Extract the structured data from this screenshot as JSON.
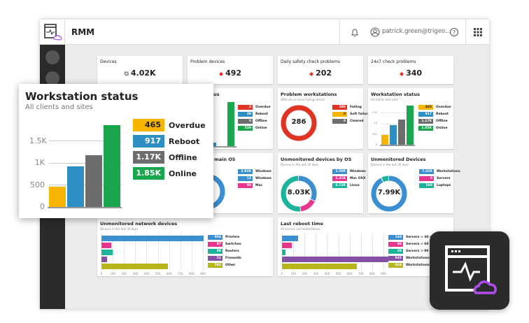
{
  "header": {
    "app_title": "RMM",
    "user": "patrick.green@trigeo...",
    "icons": [
      "bell-icon",
      "user-icon",
      "help-icon",
      "apps-grid-icon"
    ]
  },
  "kpis": [
    {
      "title": "Devices",
      "value": "4.02K",
      "icon": "devices-icon"
    },
    {
      "title": "Problem devices",
      "value": "492",
      "icon": "alert-diamond-icon"
    },
    {
      "title": "Daily safety check problems",
      "value": "202",
      "icon": "alert-diamond-icon"
    },
    {
      "title": "24x7 check problems",
      "value": "340",
      "icon": "alert-diamond-icon"
    }
  ],
  "colors": {
    "yellow": "#f7b500",
    "blue": "#2d8fc4",
    "gray": "#6d6d6d",
    "green": "#1aa64d",
    "red": "#e03324",
    "pink": "#e8368f",
    "teal": "#1cb39b",
    "purple": "#8650a6",
    "olive": "#b8b41c",
    "donut_blue": "#3a8fd0",
    "brand_purple": "#b44cf0"
  },
  "cards": {
    "server_status": {
      "title_fragment": "us",
      "values": [
        2,
        39,
        0,
        529
      ],
      "labels": [
        "Overdue",
        "Reboot",
        "Offline",
        "Online"
      ],
      "value_labels": [
        "2",
        "39",
        "0",
        "529"
      ]
    },
    "main_os": {
      "title_fragment": "main OS",
      "value_labels": [
        "3.92K",
        "12",
        "86"
      ],
      "labels": [
        "Windows",
        "Windows",
        "Mac"
      ]
    },
    "problem_workstations": {
      "title": "Problem workstations",
      "subtitle": "With one or more failing checks",
      "center": "286",
      "values": [
        286,
        0,
        0
      ],
      "value_labels": [
        "286",
        "0",
        "0"
      ],
      "labels": [
        "Failing",
        "Soft failure",
        "Cleared"
      ]
    },
    "workstation_status": {
      "title": "Workstation status",
      "subtitle": "All clients and sites",
      "values": [
        465,
        917,
        1170,
        1850
      ],
      "value_labels": [
        "465",
        "917",
        "1.17K",
        "1.85K"
      ],
      "labels": [
        "Overdue",
        "Reboot",
        "Offline",
        "Online"
      ],
      "y_ticks": [
        "0",
        "500",
        "1K",
        "1.5K"
      ]
    },
    "unmonitored_by_os": {
      "title": "Unmonitored devices by OS",
      "subtitle": "Devices in the last 30 days",
      "center": "8.03K",
      "values": [
        2590,
        1310,
        4130
      ],
      "value_labels": [
        "2.59K",
        "1.31K",
        "4.13K"
      ],
      "labels": [
        "Windows",
        "Mac OSX",
        "Linux"
      ]
    },
    "unmonitored_devices": {
      "title": "Unmonitored Devices",
      "subtitle": "Devices in the last 30 days",
      "center": "7.99K",
      "values": [
        7420,
        8,
        569
      ],
      "value_labels": [
        "7.42K",
        "8",
        "569"
      ],
      "labels": [
        "Workstations",
        "Servers",
        "Laptops"
      ]
    },
    "network_devices": {
      "title": "Unmonitored network devices",
      "subtitle": "Devices in the last 30 days",
      "values": [
        904,
        87,
        99,
        51,
        592
      ],
      "value_labels": [
        "904",
        "87",
        "99",
        "51",
        "592"
      ],
      "labels": [
        "Printers",
        "Switches",
        "Routers",
        "Firewalls",
        "Other"
      ],
      "x_ticks": [
        "0",
        "100",
        "200",
        "300",
        "400",
        "500",
        "600",
        "700",
        "800",
        "900"
      ]
    },
    "last_reboot": {
      "title": "Last reboot time",
      "subtitle": "All servers and workstations",
      "values": [
        144,
        88,
        29,
        945,
        664
      ],
      "value_labels": [
        "144",
        "88",
        "29",
        "945",
        "664"
      ],
      "labels": [
        "Servers > 30 days",
        "Servers > 60 days",
        "Servers > 90 days",
        "Workstations > 6",
        "Workstations > 9"
      ],
      "x_ticks": [
        "0",
        "100",
        "200",
        "300",
        "400",
        "500",
        "600",
        "700",
        "800",
        "900"
      ]
    }
  },
  "popup": {
    "title": "Workstation status",
    "subtitle": "All clients and sites",
    "values": [
      465,
      917,
      1170,
      1850
    ],
    "value_labels": [
      "465",
      "917",
      "1.17K",
      "1.85K"
    ],
    "labels": [
      "Overdue",
      "Reboot",
      "Offline",
      "Online"
    ],
    "y_ticks": [
      "0",
      "500",
      "1K",
      "1.5K"
    ]
  }
}
